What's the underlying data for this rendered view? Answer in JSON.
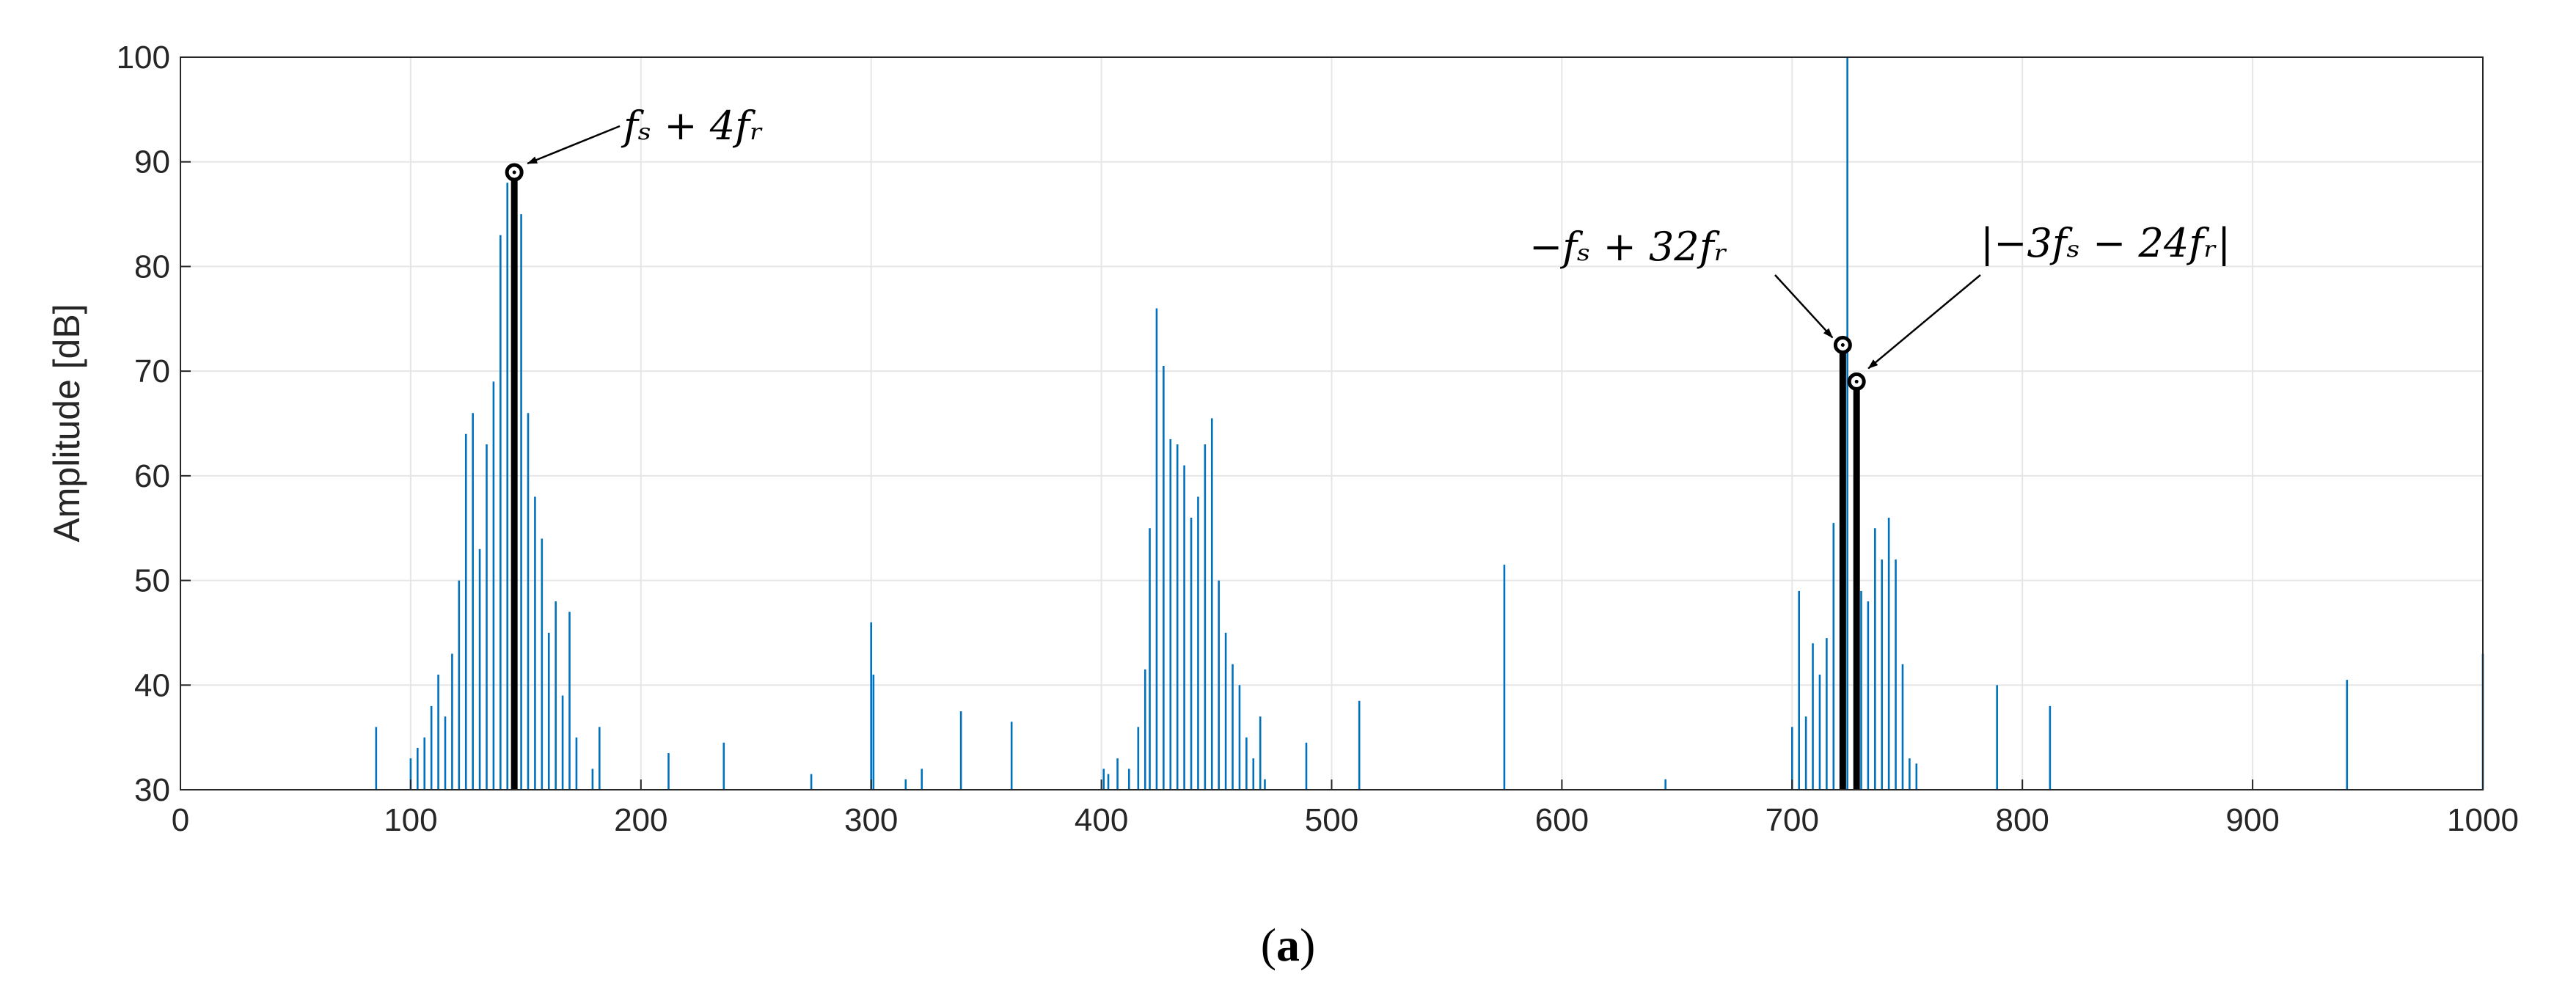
{
  "colors": {
    "spectrum": "#0072BD",
    "highlight": "#000000",
    "grid": "#e6e6e6",
    "axis": "#262626"
  },
  "caption": {
    "open": "(",
    "letter": "a",
    "close": ")"
  },
  "chart_data": {
    "type": "bar",
    "title": "",
    "xlabel": "",
    "ylabel": "Amplitude [dB]",
    "xlim": [
      0,
      1000
    ],
    "ylim": [
      30,
      100
    ],
    "grid": true,
    "xticks": [
      0,
      100,
      200,
      300,
      400,
      500,
      600,
      700,
      800,
      900,
      1000
    ],
    "yticks": [
      30,
      40,
      50,
      60,
      70,
      80,
      90,
      100
    ],
    "series": [
      {
        "style": "stem",
        "x": [
          85,
          100,
          103,
          106,
          109,
          112,
          115,
          118,
          121,
          124,
          127,
          130,
          133,
          136,
          139,
          142,
          148,
          151,
          154,
          157,
          160,
          163,
          166,
          169,
          172,
          179,
          182,
          212,
          236,
          274,
          300,
          301,
          315,
          322,
          339,
          361,
          401,
          403,
          407,
          412,
          416,
          419,
          421,
          424,
          427,
          430,
          433,
          436,
          439,
          442,
          445,
          448,
          451,
          454,
          457,
          460,
          463,
          466,
          469,
          471,
          489,
          512,
          575,
          645,
          700,
          703,
          706,
          709,
          712,
          715,
          718,
          721,
          724,
          730,
          733,
          736,
          739,
          742,
          745,
          748,
          751,
          754,
          789,
          812,
          941,
          1000
        ],
        "y": [
          36,
          33,
          34,
          35,
          38,
          41,
          37,
          43,
          50,
          64,
          66,
          53,
          63,
          69,
          83,
          88,
          85,
          66,
          58,
          54,
          45,
          48,
          39,
          47,
          35,
          32,
          36,
          33.5,
          34.5,
          31.5,
          46,
          41,
          31,
          32,
          37.5,
          36.5,
          32,
          31.5,
          33,
          32,
          36,
          41.5,
          55,
          76,
          70.5,
          63.5,
          63,
          61,
          56,
          58,
          63,
          65.5,
          50,
          45,
          42,
          40,
          35,
          33,
          37,
          31,
          34.5,
          38.5,
          51.5,
          31,
          36,
          49,
          37,
          44,
          41,
          44.5,
          55.5,
          73,
          100,
          49,
          48,
          55,
          52,
          56,
          52,
          42,
          33,
          32.5,
          40,
          38,
          40.5,
          43
        ]
      },
      {
        "style": "stem-highlight",
        "x": [
          145,
          722,
          728
        ],
        "y": [
          89,
          72.5,
          69
        ]
      }
    ],
    "annotations": [
      {
        "text": "fₛ + 4fᵣ",
        "x": 145,
        "y": 89
      },
      {
        "text": "−fₛ + 32fᵣ",
        "x": 722,
        "y": 72.5
      },
      {
        "text": "|−3fₛ − 24fᵣ|",
        "x": 728,
        "y": 69
      }
    ]
  }
}
